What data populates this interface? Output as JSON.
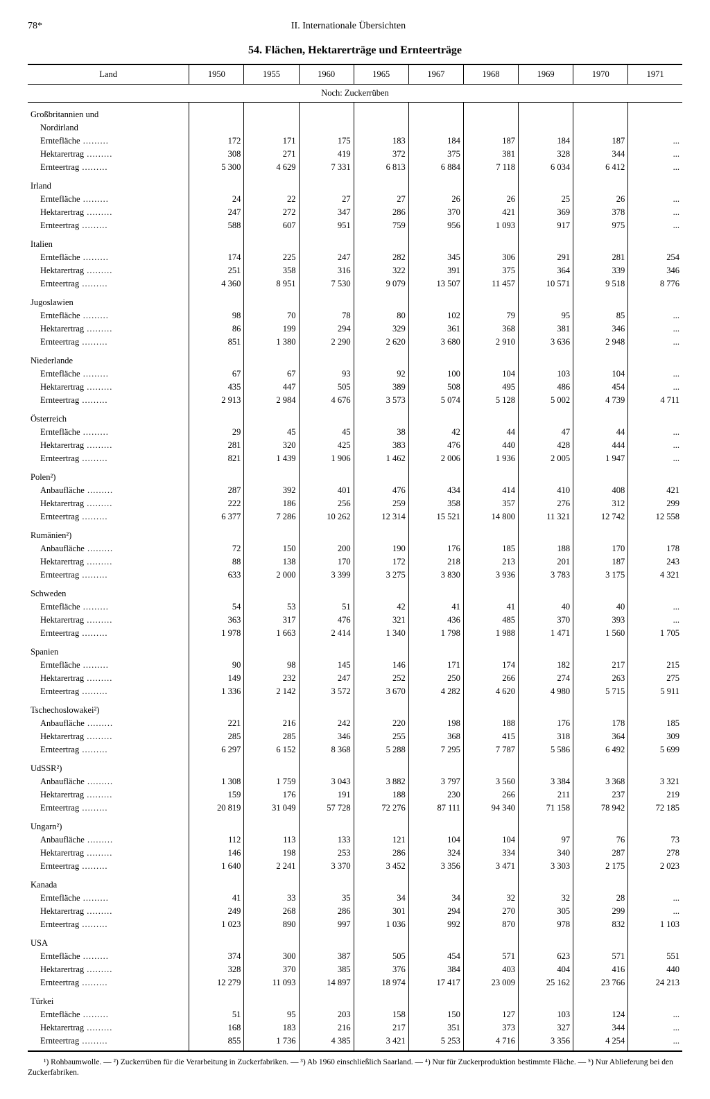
{
  "page_number": "78*",
  "section_header": "II. Internationale Übersichten",
  "title": "54. Flächen, Hektarerträge und Ernteerträge",
  "columns": {
    "label": "Land",
    "years": [
      "1950",
      "1955",
      "1960",
      "1965",
      "1967",
      "1968",
      "1969",
      "1970",
      "1971"
    ]
  },
  "subheader": "Noch: Zuckerrüben",
  "row_labels": {
    "ernte": "Erntefläche",
    "hektar": "Hektarertrag",
    "ertrag": "Ernteertrag",
    "anbau": "Anbaufläche"
  },
  "countries": [
    {
      "name": "Großbritannien und Nordirland",
      "name2": "",
      "rows": [
        {
          "k": "ernte",
          "v": [
            "172",
            "171",
            "175",
            "183",
            "184",
            "187",
            "184",
            "187",
            "..."
          ]
        },
        {
          "k": "hektar",
          "v": [
            "308",
            "271",
            "419",
            "372",
            "375",
            "381",
            "328",
            "344",
            "..."
          ]
        },
        {
          "k": "ertrag",
          "v": [
            "5 300",
            "4 629",
            "7 331",
            "6 813",
            "6 884",
            "7 118",
            "6 034",
            "6 412",
            "..."
          ]
        }
      ]
    },
    {
      "name": "Irland",
      "rows": [
        {
          "k": "ernte",
          "v": [
            "24",
            "22",
            "27",
            "27",
            "26",
            "26",
            "25",
            "26",
            "..."
          ]
        },
        {
          "k": "hektar",
          "v": [
            "247",
            "272",
            "347",
            "286",
            "370",
            "421",
            "369",
            "378",
            "..."
          ]
        },
        {
          "k": "ertrag",
          "v": [
            "588",
            "607",
            "951",
            "759",
            "956",
            "1 093",
            "917",
            "975",
            "..."
          ]
        }
      ]
    },
    {
      "name": "Italien",
      "rows": [
        {
          "k": "ernte",
          "v": [
            "174",
            "225",
            "247",
            "282",
            "345",
            "306",
            "291",
            "281",
            "254"
          ]
        },
        {
          "k": "hektar",
          "v": [
            "251",
            "358",
            "316",
            "322",
            "391",
            "375",
            "364",
            "339",
            "346"
          ]
        },
        {
          "k": "ertrag",
          "v": [
            "4 360",
            "8 951",
            "7 530",
            "9 079",
            "13 507",
            "11 457",
            "10 571",
            "9 518",
            "8 776"
          ]
        }
      ]
    },
    {
      "name": "Jugoslawien",
      "rows": [
        {
          "k": "ernte",
          "v": [
            "98",
            "70",
            "78",
            "80",
            "102",
            "79",
            "95",
            "85",
            "..."
          ]
        },
        {
          "k": "hektar",
          "v": [
            "86",
            "199",
            "294",
            "329",
            "361",
            "368",
            "381",
            "346",
            "..."
          ]
        },
        {
          "k": "ertrag",
          "v": [
            "851",
            "1 380",
            "2 290",
            "2 620",
            "3 680",
            "2 910",
            "3 636",
            "2 948",
            "..."
          ]
        }
      ]
    },
    {
      "name": "Niederlande",
      "rows": [
        {
          "k": "ernte",
          "v": [
            "67",
            "67",
            "93",
            "92",
            "100",
            "104",
            "103",
            "104",
            "..."
          ]
        },
        {
          "k": "hektar",
          "v": [
            "435",
            "447",
            "505",
            "389",
            "508",
            "495",
            "486",
            "454",
            "..."
          ]
        },
        {
          "k": "ertrag",
          "v": [
            "2 913",
            "2 984",
            "4 676",
            "3 573",
            "5 074",
            "5 128",
            "5 002",
            "4 739",
            "4 711"
          ]
        }
      ]
    },
    {
      "name": "Österreich",
      "rows": [
        {
          "k": "ernte",
          "v": [
            "29",
            "45",
            "45",
            "38",
            "42",
            "44",
            "47",
            "44",
            "..."
          ]
        },
        {
          "k": "hektar",
          "v": [
            "281",
            "320",
            "425",
            "383",
            "476",
            "440",
            "428",
            "444",
            "..."
          ]
        },
        {
          "k": "ertrag",
          "v": [
            "821",
            "1 439",
            "1 906",
            "1 462",
            "2 006",
            "1 936",
            "2 005",
            "1 947",
            "..."
          ]
        }
      ]
    },
    {
      "name": "Polen²)",
      "rows": [
        {
          "k": "anbau",
          "v": [
            "287",
            "392",
            "401",
            "476",
            "434",
            "414",
            "410",
            "408",
            "421"
          ]
        },
        {
          "k": "hektar",
          "v": [
            "222",
            "186",
            "256",
            "259",
            "358",
            "357",
            "276",
            "312",
            "299"
          ]
        },
        {
          "k": "ertrag",
          "v": [
            "6 377",
            "7 286",
            "10 262",
            "12 314",
            "15 521",
            "14 800",
            "11 321",
            "12 742",
            "12 558"
          ]
        }
      ]
    },
    {
      "name": "Rumänien²)",
      "rows": [
        {
          "k": "anbau",
          "v": [
            "72",
            "150",
            "200",
            "190",
            "176",
            "185",
            "188",
            "170",
            "178"
          ]
        },
        {
          "k": "hektar",
          "v": [
            "88",
            "138",
            "170",
            "172",
            "218",
            "213",
            "201",
            "187",
            "243"
          ]
        },
        {
          "k": "ertrag",
          "v": [
            "633",
            "2 000",
            "3 399",
            "3 275",
            "3 830",
            "3 936",
            "3 783",
            "3 175",
            "4 321"
          ]
        }
      ]
    },
    {
      "name": "Schweden",
      "rows": [
        {
          "k": "ernte",
          "v": [
            "54",
            "53",
            "51",
            "42",
            "41",
            "41",
            "40",
            "40",
            "..."
          ]
        },
        {
          "k": "hektar",
          "v": [
            "363",
            "317",
            "476",
            "321",
            "436",
            "485",
            "370",
            "393",
            "..."
          ]
        },
        {
          "k": "ertrag",
          "v": [
            "1 978",
            "1 663",
            "2 414",
            "1 340",
            "1 798",
            "1 988",
            "1 471",
            "1 560",
            "1 705"
          ]
        }
      ]
    },
    {
      "name": "Spanien",
      "rows": [
        {
          "k": "ernte",
          "v": [
            "90",
            "98",
            "145",
            "146",
            "171",
            "174",
            "182",
            "217",
            "215"
          ]
        },
        {
          "k": "hektar",
          "v": [
            "149",
            "232",
            "247",
            "252",
            "250",
            "266",
            "274",
            "263",
            "275"
          ]
        },
        {
          "k": "ertrag",
          "v": [
            "1 336",
            "2 142",
            "3 572",
            "3 670",
            "4 282",
            "4 620",
            "4 980",
            "5 715",
            "5 911"
          ]
        }
      ]
    },
    {
      "name": "Tschechoslowakei²)",
      "rows": [
        {
          "k": "anbau",
          "v": [
            "221",
            "216",
            "242",
            "220",
            "198",
            "188",
            "176",
            "178",
            "185"
          ]
        },
        {
          "k": "hektar",
          "v": [
            "285",
            "285",
            "346",
            "255",
            "368",
            "415",
            "318",
            "364",
            "309"
          ]
        },
        {
          "k": "ertrag",
          "v": [
            "6 297",
            "6 152",
            "8 368",
            "5 288",
            "7 295",
            "7 787",
            "5 586",
            "6 492",
            "5 699"
          ]
        }
      ]
    },
    {
      "name": "UdSSR²)",
      "rows": [
        {
          "k": "anbau",
          "v": [
            "1 308",
            "1 759",
            "3 043",
            "3 882",
            "3 797",
            "3 560",
            "3 384",
            "3 368",
            "3 321"
          ]
        },
        {
          "k": "hektar",
          "v": [
            "159",
            "176",
            "191",
            "188",
            "230",
            "266",
            "211",
            "237",
            "219"
          ]
        },
        {
          "k": "ertrag",
          "v": [
            "20 819",
            "31 049",
            "57 728",
            "72 276",
            "87 111",
            "94 340",
            "71 158",
            "78 942",
            "72 185"
          ]
        }
      ]
    },
    {
      "name": "Ungarn²)",
      "rows": [
        {
          "k": "anbau",
          "v": [
            "112",
            "113",
            "133",
            "121",
            "104",
            "104",
            "97",
            "76",
            "73"
          ]
        },
        {
          "k": "hektar",
          "v": [
            "146",
            "198",
            "253",
            "286",
            "324",
            "334",
            "340",
            "287",
            "278"
          ]
        },
        {
          "k": "ertrag",
          "v": [
            "1 640",
            "2 241",
            "3 370",
            "3 452",
            "3 356",
            "3 471",
            "3 303",
            "2 175",
            "2 023"
          ]
        }
      ]
    },
    {
      "name": "Kanada",
      "rows": [
        {
          "k": "ernte",
          "v": [
            "41",
            "33",
            "35",
            "34",
            "34",
            "32",
            "32",
            "28",
            "..."
          ]
        },
        {
          "k": "hektar",
          "v": [
            "249",
            "268",
            "286",
            "301",
            "294",
            "270",
            "305",
            "299",
            "..."
          ]
        },
        {
          "k": "ertrag",
          "v": [
            "1 023",
            "890",
            "997",
            "1 036",
            "992",
            "870",
            "978",
            "832",
            "1 103"
          ]
        }
      ]
    },
    {
      "name": "USA",
      "rows": [
        {
          "k": "ernte",
          "v": [
            "374",
            "300",
            "387",
            "505",
            "454",
            "571",
            "623",
            "571",
            "551"
          ]
        },
        {
          "k": "hektar",
          "v": [
            "328",
            "370",
            "385",
            "376",
            "384",
            "403",
            "404",
            "416",
            "440"
          ]
        },
        {
          "k": "ertrag",
          "v": [
            "12 279",
            "11 093",
            "14 897",
            "18 974",
            "17 417",
            "23 009",
            "25 162",
            "23 766",
            "24 213"
          ]
        }
      ]
    },
    {
      "name": "Türkei",
      "rows": [
        {
          "k": "ernte",
          "v": [
            "51",
            "95",
            "203",
            "158",
            "150",
            "127",
            "103",
            "124",
            "..."
          ]
        },
        {
          "k": "hektar",
          "v": [
            "168",
            "183",
            "216",
            "217",
            "351",
            "373",
            "327",
            "344",
            "..."
          ]
        },
        {
          "k": "ertrag",
          "v": [
            "855",
            "1 736",
            "4 385",
            "3 421",
            "5 253",
            "4 716",
            "3 356",
            "4 254",
            "..."
          ]
        }
      ]
    }
  ],
  "footnotes": "¹) Rohbaumwolle. — ²) Zuckerrüben für die Verarbeitung in Zuckerfabriken. — ³) Ab 1960 einschließlich Saarland. — ⁴) Nur für Zuckerproduktion bestimmte Fläche. — ⁵) Nur Ablieferung bei den Zuckerfabriken."
}
